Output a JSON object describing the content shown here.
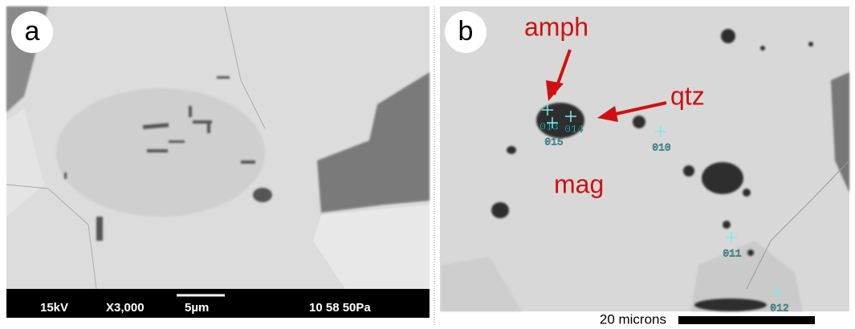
{
  "panels": [
    {
      "label": "a",
      "footer": [
        "15kV",
        "X3,000",
        "5µm",
        "10 58 50Pa"
      ]
    },
    {
      "label": "b",
      "annotations": [
        "amph",
        "qtz",
        "mag"
      ],
      "points": [
        "013",
        "014",
        "015",
        "010",
        "011",
        "012"
      ],
      "scale_bar": "20 microns"
    }
  ]
}
